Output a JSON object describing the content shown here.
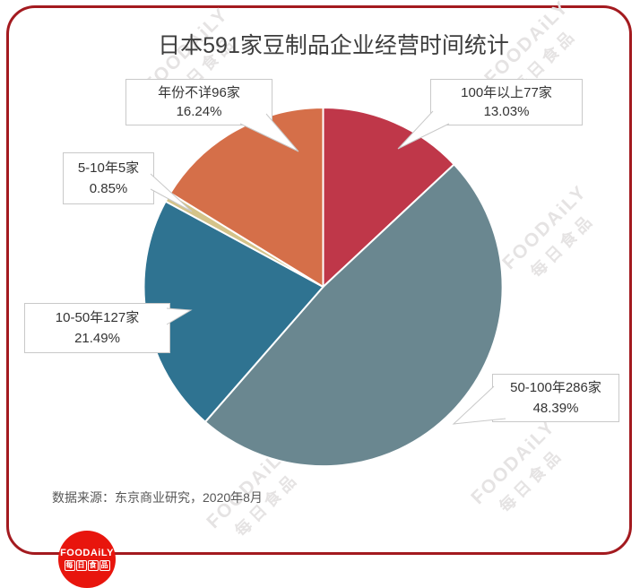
{
  "title": "日本591家豆制品企业经营时间统计",
  "source": "数据来源：东京商业研究，2020年8月",
  "watermark": {
    "line1": "FOODAiLY",
    "line2": "每日食品",
    "color": "#e5e3e3"
  },
  "logo": {
    "line1": "FOODAiLY",
    "line2": "每日食品",
    "bg_color": "#e8150d"
  },
  "frame": {
    "border_color": "#a31a1f"
  },
  "chart_data": {
    "type": "pie",
    "title": "日本591家豆制品企业经营时间统计",
    "total_companies": 591,
    "start_angle_deg": 0,
    "direction": "clockwise",
    "legend_position": "callouts",
    "slices": [
      {
        "label": "100年以上77家",
        "count": 77,
        "value": 13.03,
        "percent_label": "13.03%",
        "color": "#bf3749"
      },
      {
        "label": "50-100年286家",
        "count": 286,
        "value": 48.39,
        "percent_label": "48.39%",
        "color": "#6a8790"
      },
      {
        "label": "10-50年127家",
        "count": 127,
        "value": 21.49,
        "percent_label": "21.49%",
        "color": "#2f7391"
      },
      {
        "label": "5-10年5家",
        "count": 5,
        "value": 0.85,
        "percent_label": "0.85%",
        "color": "#d4c389"
      },
      {
        "label": "年份不详96家",
        "count": 96,
        "value": 16.24,
        "percent_label": "16.24%",
        "color": "#d56f49"
      }
    ]
  }
}
